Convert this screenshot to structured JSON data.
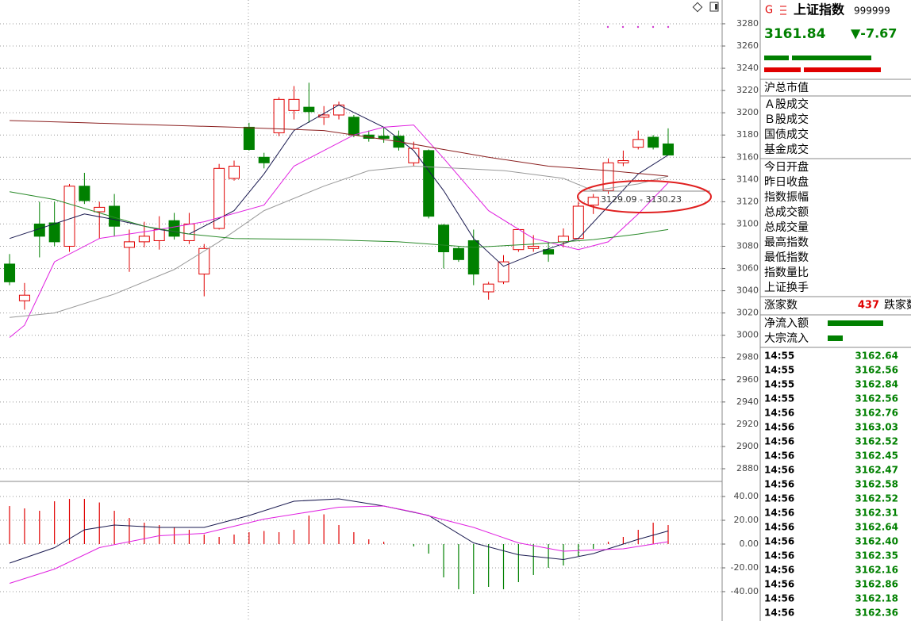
{
  "chart_data": [
    {
      "type": "candlestick",
      "xlim": [
        -0.64,
        47.5
      ],
      "ylim": [
        2868.6,
        3297.8
      ],
      "yticks": [
        3280,
        3260,
        3240,
        3220,
        3200,
        3180,
        3160,
        3140,
        3120,
        3100,
        3080,
        3060,
        3040,
        3020,
        3000,
        2980,
        2960,
        2940,
        2920,
        2900,
        2880
      ],
      "grid": true,
      "up_color": "#e00000",
      "down_color": "#008000",
      "open": [
        3064,
        3031,
        3100,
        3101,
        3080,
        3134,
        3111,
        3116,
        3079,
        3084,
        3085,
        3103,
        3085,
        3055,
        3096,
        3141,
        3187,
        3160,
        3182,
        3202,
        3205,
        3196,
        3198,
        3196,
        3180,
        3179,
        3179,
        3155,
        3166,
        3099,
        3078,
        3085,
        3039,
        3048,
        3077,
        3078,
        3077,
        3084,
        3087,
        3117,
        3130,
        3155,
        3169,
        3178,
        3172
      ],
      "close": [
        3048,
        3036,
        3089,
        3084,
        3134,
        3121,
        3115,
        3098,
        3084,
        3089,
        3095,
        3089,
        3100,
        3078,
        3150,
        3152,
        3167,
        3155,
        3212,
        3212,
        3201,
        3198,
        3207,
        3180,
        3177,
        3177,
        3169,
        3168,
        3107,
        3075,
        3068,
        3055,
        3046,
        3066,
        3095,
        3080,
        3073,
        3089,
        3116,
        3124,
        3155,
        3157,
        3176,
        3169,
        3162
      ],
      "high": [
        3073,
        3047,
        3120,
        3120,
        3136,
        3146,
        3120,
        3127,
        3095,
        3102,
        3107,
        3110,
        3110,
        3082,
        3154,
        3157,
        3191,
        3164,
        3214,
        3224,
        3227,
        3206,
        3210,
        3198,
        3184,
        3187,
        3184,
        3174,
        3167,
        3100,
        3080,
        3095,
        3048,
        3072,
        3096,
        3090,
        3084,
        3096,
        3120,
        3127,
        3159,
        3166,
        3184,
        3180,
        3186
      ],
      "low": [
        3045,
        3023,
        3070,
        3080,
        3075,
        3118,
        3087,
        3089,
        3057,
        3079,
        3077,
        3086,
        3082,
        3035,
        3095,
        3139,
        3166,
        3150,
        3179,
        3194,
        3191,
        3189,
        3194,
        3178,
        3174,
        3173,
        3166,
        3152,
        3105,
        3060,
        3066,
        3045,
        3032,
        3046,
        3075,
        3075,
        3066,
        3079,
        3086,
        3109,
        3127,
        3152,
        3167,
        3167,
        3162
      ],
      "lines": [
        {
          "color": "#1a1a50",
          "x": [
            0,
            5,
            7,
            10,
            12,
            15,
            17,
            19,
            22,
            25,
            27,
            29,
            31,
            33,
            35,
            38,
            40,
            42,
            44
          ],
          "values": [
            3087,
            3109,
            3104,
            3095,
            3091,
            3112,
            3145,
            3184,
            3207,
            3187,
            3166,
            3130,
            3087,
            3062,
            3073,
            3087,
            3116,
            3145,
            3162
          ]
        },
        {
          "color": "#e020e0",
          "x": [
            0,
            1,
            3,
            6,
            10,
            13,
            17,
            19,
            23,
            25,
            27,
            29,
            32,
            35,
            38,
            40,
            42,
            44
          ],
          "values": [
            2998,
            3009,
            3066,
            3087,
            3095,
            3102,
            3117,
            3152,
            3180,
            3187,
            3189,
            3159,
            3112,
            3087,
            3077,
            3084,
            3109,
            3137
          ]
        },
        {
          "color": "#999999",
          "x": [
            0,
            3,
            7,
            11,
            14,
            17,
            21,
            24,
            27,
            30,
            33,
            37,
            39,
            42,
            44
          ],
          "values": [
            3016,
            3020,
            3037,
            3059,
            3084,
            3112,
            3134,
            3148,
            3152,
            3150,
            3148,
            3141,
            3130,
            3136,
            3143
          ]
        },
        {
          "color": "#2a8a2a",
          "x": [
            0,
            3,
            6,
            9,
            12,
            15,
            21,
            26,
            31,
            35,
            39,
            42,
            44
          ],
          "values": [
            3129,
            3122,
            3110,
            3098,
            3091,
            3087,
            3086,
            3084,
            3079,
            3082,
            3086,
            3091,
            3095
          ]
        },
        {
          "color": "#8b2020",
          "x": [
            0,
            5,
            10,
            15,
            21,
            26,
            29,
            32,
            36,
            40,
            44
          ],
          "values": [
            3193,
            3191,
            3189,
            3187,
            3184,
            3174,
            3167,
            3160,
            3152,
            3148,
            3143
          ]
        }
      ],
      "annotation": "3129.09 - 3130.23"
    },
    {
      "type": "macd",
      "xlim": [
        -0.64,
        47.5
      ],
      "ylim": [
        -64.7,
        52.7
      ],
      "yticks": [
        {
          "value": 40,
          "label": "40.00"
        },
        {
          "value": 20,
          "label": "20.00"
        },
        {
          "value": 0,
          "label": "0.00"
        },
        {
          "value": -20,
          "label": "-20.00"
        },
        {
          "value": -40,
          "label": "-40.00"
        }
      ],
      "grid": true,
      "up_color": "#e00000",
      "down_color": "#008000",
      "values": [
        32,
        30,
        28,
        36,
        38,
        38,
        35,
        28,
        22,
        18,
        16,
        14,
        12,
        8,
        6,
        8,
        10,
        11,
        10,
        12,
        24,
        25,
        16,
        10,
        4,
        2,
        0,
        -2,
        -8,
        -28,
        -38,
        -42,
        -36,
        -38,
        -32,
        -26,
        -20,
        -18,
        -10,
        -4,
        2,
        6,
        12,
        18,
        16
      ],
      "lines": [
        {
          "color": "#1a1a50",
          "x": [
            0,
            3,
            5,
            7,
            10,
            13,
            16,
            19,
            22,
            25,
            28,
            31,
            34,
            37,
            39,
            42,
            44
          ],
          "values": [
            -16,
            -3,
            12,
            16,
            14,
            14,
            24,
            36,
            38,
            32,
            24,
            1,
            -9,
            -13,
            -8,
            4,
            11
          ]
        },
        {
          "color": "#e020e0",
          "x": [
            0,
            3,
            6,
            10,
            13,
            17,
            22,
            25,
            27,
            31,
            34,
            37,
            41,
            44
          ],
          "values": [
            -33,
            -21,
            -3,
            7,
            9,
            21,
            31,
            32,
            27,
            14,
            1,
            -6,
            -4,
            2
          ]
        }
      ]
    }
  ],
  "panel": {
    "badge": "G",
    "name": "上证指数",
    "code": "999999",
    "price": "3161.84",
    "change": "▼-7.67",
    "market_cap_label": "沪总市值",
    "turnover_labels": [
      "Ａ股成交",
      "Ｂ股成交",
      "国债成交",
      "基金成交"
    ],
    "index_labels": [
      "今日开盘",
      "昨日收盘",
      "指数振幅",
      "总成交额",
      "总成交量",
      "最高指数",
      "最低指数",
      "指数量比",
      "上证换手"
    ],
    "advancers_label": "涨家数",
    "advancers": 437,
    "decliners_label": "跌家数",
    "flow_labels": [
      "净流入额",
      "大宗流入"
    ],
    "ticks": [
      [
        "14:55",
        "3162.64"
      ],
      [
        "14:55",
        "3162.56"
      ],
      [
        "14:55",
        "3162.84"
      ],
      [
        "14:55",
        "3162.56"
      ],
      [
        "14:56",
        "3162.76"
      ],
      [
        "14:56",
        "3163.03"
      ],
      [
        "14:56",
        "3162.52"
      ],
      [
        "14:56",
        "3162.45"
      ],
      [
        "14:56",
        "3162.47"
      ],
      [
        "14:56",
        "3162.58"
      ],
      [
        "14:56",
        "3162.52"
      ],
      [
        "14:56",
        "3162.31"
      ],
      [
        "14:56",
        "3162.64"
      ],
      [
        "14:56",
        "3162.40"
      ],
      [
        "14:56",
        "3162.35"
      ],
      [
        "14:56",
        "3162.16"
      ],
      [
        "14:56",
        "3162.86"
      ],
      [
        "14:56",
        "3162.18"
      ],
      [
        "14:56",
        "3162.36"
      ]
    ]
  }
}
